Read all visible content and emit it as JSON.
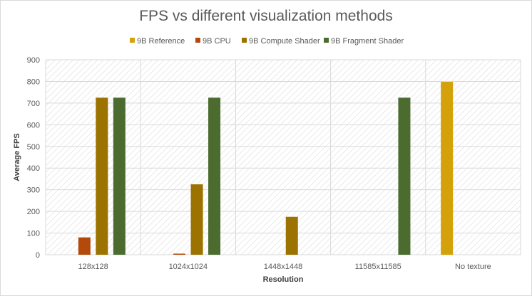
{
  "chart_data": {
    "type": "bar",
    "title": "FPS vs different visualization methods",
    "xlabel": "Resolution",
    "ylabel": "Average FPS",
    "ylim": [
      0,
      900
    ],
    "yticks": [
      "0",
      "100",
      "200",
      "300",
      "400",
      "500",
      "600",
      "700",
      "800",
      "900"
    ],
    "categories": [
      "128x128",
      "1024x1024",
      "1448x1448",
      "11585x11585",
      "No texture"
    ],
    "legend_position": "top",
    "grid": true,
    "series": [
      {
        "name": "9B Reference",
        "color": "#d4a10b",
        "values": [
          0,
          0,
          0,
          0,
          798
        ]
      },
      {
        "name": "9B CPU",
        "color": "#b34a0b",
        "values": [
          80,
          5,
          0,
          0,
          0
        ]
      },
      {
        "name": "9B Compute Shader",
        "color": "#9c7200",
        "values": [
          725,
          325,
          175,
          0,
          0
        ]
      },
      {
        "name": "9B Fragment Shader",
        "color": "#4b6b2f",
        "values": [
          725,
          725,
          0,
          725,
          0
        ]
      }
    ]
  }
}
